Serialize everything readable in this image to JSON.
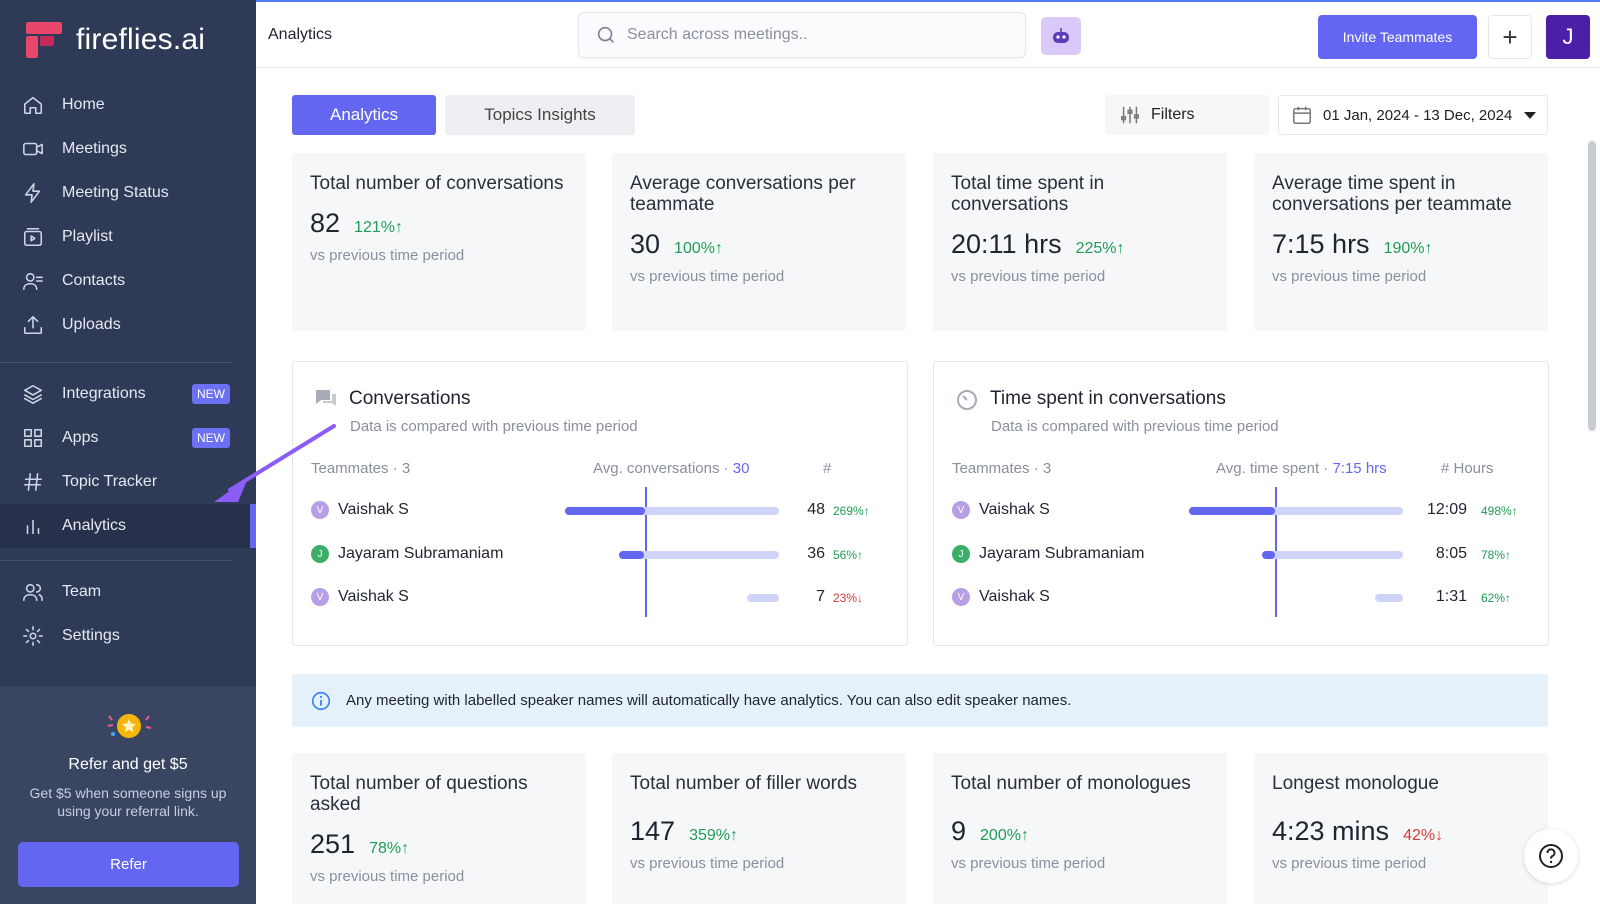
{
  "app": {
    "name": "fireflies.ai"
  },
  "sidebar": {
    "items": [
      {
        "label": "Home",
        "icon": "home-icon"
      },
      {
        "label": "Meetings",
        "icon": "video-icon"
      },
      {
        "label": "Meeting Status",
        "icon": "lightning-icon"
      },
      {
        "label": "Playlist",
        "icon": "playlist-icon"
      },
      {
        "label": "Contacts",
        "icon": "contacts-icon"
      },
      {
        "label": "Uploads",
        "icon": "upload-icon"
      },
      {
        "label": "Integrations",
        "icon": "layers-icon",
        "badge": "NEW"
      },
      {
        "label": "Apps",
        "icon": "grid-icon",
        "badge": "NEW"
      },
      {
        "label": "Topic Tracker",
        "icon": "hash-icon"
      },
      {
        "label": "Analytics",
        "icon": "bar-chart-icon",
        "active": true
      },
      {
        "label": "Team",
        "icon": "team-icon"
      },
      {
        "label": "Settings",
        "icon": "gear-icon"
      }
    ],
    "refer": {
      "title": "Refer and get $5",
      "description": "Get $5 when someone signs up using your referral link.",
      "button": "Refer"
    }
  },
  "topbar": {
    "title": "Analytics",
    "search_placeholder": "Search across meetings..",
    "invite_label": "Invite Teammates",
    "plus_label": "+",
    "avatar_initial": "J"
  },
  "tabs": [
    {
      "label": "Analytics",
      "active": true
    },
    {
      "label": "Topics Insights"
    }
  ],
  "filters_label": "Filters",
  "date_range": "01 Jan, 2024 - 13 Dec, 2024",
  "stats_top": [
    {
      "title": "Total number of conversations",
      "value": "82",
      "change": "121%",
      "dir": "up",
      "sub": "vs previous time period"
    },
    {
      "title": "Average conversations per teammate",
      "value": "30",
      "change": "100%",
      "dir": "up",
      "sub": "vs previous time period"
    },
    {
      "title": "Total time spent in conversations",
      "value": "20:11 hrs",
      "change": "225%",
      "dir": "up",
      "sub": "vs previous time period"
    },
    {
      "title": "Average time spent in conversations per teammate",
      "value": "7:15 hrs",
      "change": "190%",
      "dir": "up",
      "sub": "vs previous time period"
    }
  ],
  "conversations_panel": {
    "title": "Conversations",
    "subtitle": "Data is compared with previous time period",
    "teammates_label": "Teammates · 3",
    "avg_label": "Avg. conversations ·",
    "avg_value": "30",
    "count_label": "#",
    "avg_fraction": 0.375,
    "rows": [
      {
        "initial": "V",
        "name": "Vaishak S",
        "value": "48",
        "change": "269%",
        "dir": "up",
        "fill": 0.375,
        "track_start": 0.0,
        "color": "v"
      },
      {
        "initial": "J",
        "name": "Jayaram Subramaniam",
        "value": "36",
        "change": "56%",
        "dir": "up",
        "fill": 0.12,
        "track_start": 0.25,
        "color": "j"
      },
      {
        "initial": "V",
        "name": "Vaishak S",
        "value": "7",
        "change": "23%",
        "dir": "down",
        "fill": 0.0,
        "track_start": 0.85,
        "color": "v"
      }
    ]
  },
  "time_panel": {
    "title": "Time spent in conversations",
    "subtitle": "Data is compared with previous time period",
    "teammates_label": "Teammates · 3",
    "avg_label": "Avg. time spent ·",
    "avg_value": "7:15 hrs",
    "count_label": "# Hours",
    "avg_fraction": 0.4,
    "rows": [
      {
        "initial": "V",
        "name": "Vaishak S",
        "value": "12:09",
        "change": "498%",
        "dir": "up",
        "fill": 0.4,
        "track_start": 0.0,
        "color": "v"
      },
      {
        "initial": "J",
        "name": "Jayaram Subramaniam",
        "value": "8:05",
        "change": "78%",
        "dir": "up",
        "fill": 0.06,
        "track_start": 0.34,
        "color": "j"
      },
      {
        "initial": "V",
        "name": "Vaishak S",
        "value": "1:31",
        "change": "62%",
        "dir": "up",
        "fill": 0.0,
        "track_start": 0.87,
        "color": "v"
      }
    ]
  },
  "info_text": "Any meeting with labelled speaker names will automatically have analytics. You can also edit speaker names.",
  "stats_bottom": [
    {
      "title": "Total number of questions asked",
      "value": "251",
      "change": "78%",
      "dir": "up",
      "sub": "vs previous time period"
    },
    {
      "title": "Total number of filler words",
      "value": "147",
      "change": "359%",
      "dir": "up",
      "sub": "vs previous time period"
    },
    {
      "title": "Total number of monologues",
      "value": "9",
      "change": "200%",
      "dir": "up",
      "sub": "vs previous time period"
    },
    {
      "title": "Longest monologue",
      "value": "4:23 mins",
      "change": "42%",
      "dir": "down",
      "sub": "vs previous time period"
    }
  ],
  "colors": {
    "accent": "#6366f1",
    "sidebar": "#2f3a57",
    "up": "#1f9d55",
    "down": "#d63a3a"
  }
}
